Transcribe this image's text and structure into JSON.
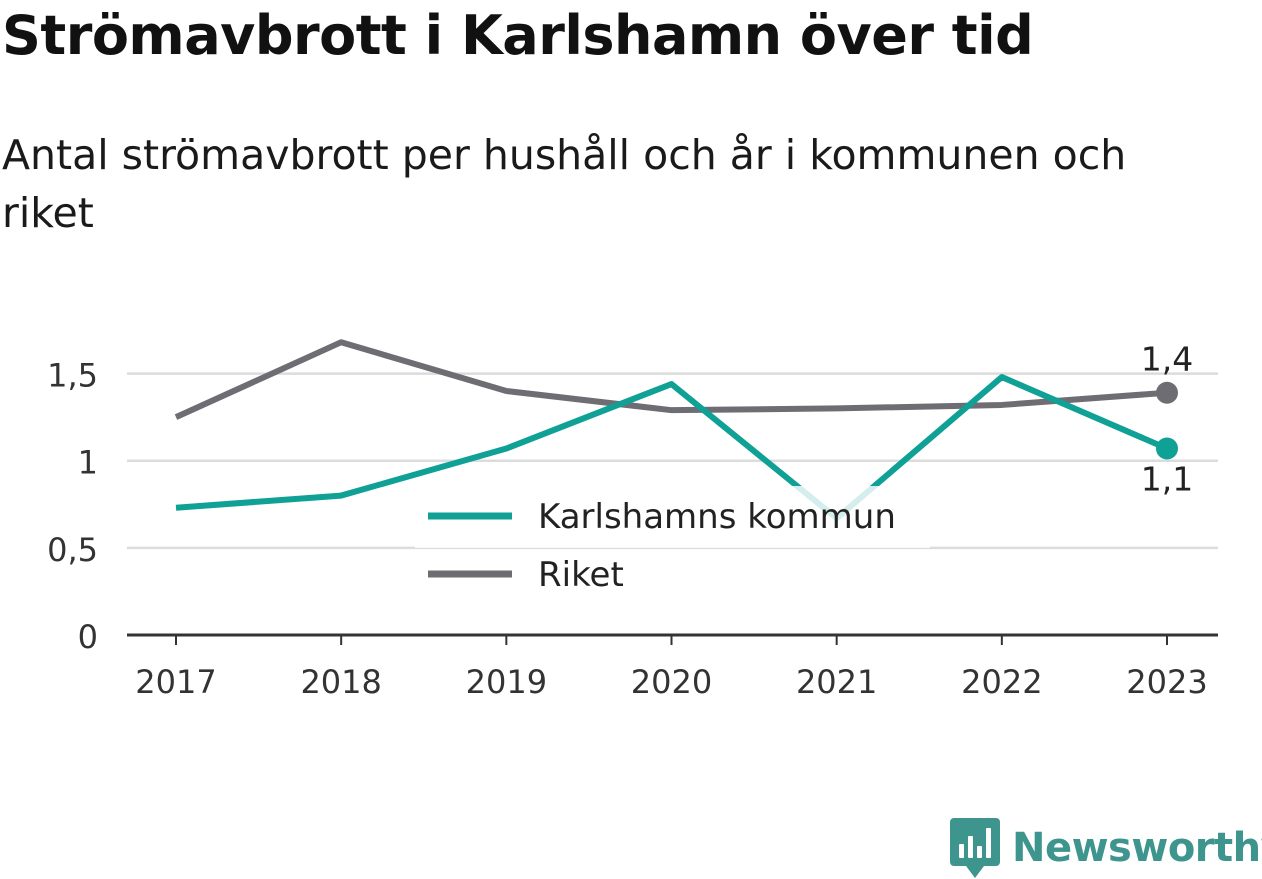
{
  "title": "Strömavbrott i Karlshamn över tid",
  "subtitle": "Antal strömavbrott per hushåll och år i kommunen och riket",
  "brand": {
    "name": "Newsworthy",
    "color": "#3d958d",
    "icon": "bar-chart-badge-icon"
  },
  "chart_data": {
    "type": "line",
    "x": [
      "2017",
      "2018",
      "2019",
      "2020",
      "2021",
      "2022",
      "2023"
    ],
    "ylim": [
      0,
      1.75
    ],
    "yticks": [
      {
        "value": 0,
        "label": "0"
      },
      {
        "value": 0.5,
        "label": "0,5"
      },
      {
        "value": 1,
        "label": "1"
      },
      {
        "value": 1.5,
        "label": "1,5"
      }
    ],
    "grid": true,
    "legend_position": "center",
    "series": [
      {
        "name": "Karlshamns kommun",
        "color": "#0fa195",
        "values": [
          0.73,
          0.8,
          1.07,
          1.44,
          0.67,
          1.48,
          1.07
        ],
        "end_label": "1,1",
        "end_label_position": "below"
      },
      {
        "name": "Riket",
        "color": "#6e6d73",
        "values": [
          1.25,
          1.68,
          1.4,
          1.29,
          1.3,
          1.32,
          1.39
        ],
        "end_label": "1,4",
        "end_label_position": "above"
      }
    ]
  }
}
